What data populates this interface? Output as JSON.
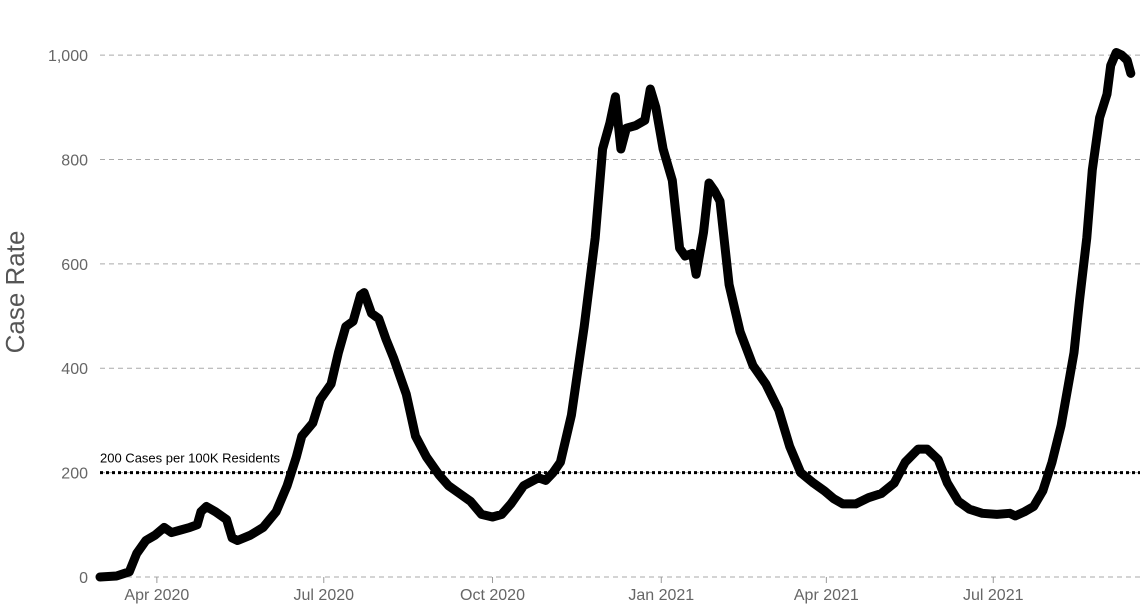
{
  "chart_data": {
    "type": "line",
    "ylabel": "Case Rate",
    "xlabel": "",
    "ylim": [
      0,
      1050
    ],
    "xlim": [
      "2020-03-01",
      "2021-08-31"
    ],
    "grid": {
      "horizontal": true,
      "style": "dashed",
      "color": "#aaaaaa"
    },
    "y_ticks": [
      {
        "value": 0,
        "label": "0"
      },
      {
        "value": 200,
        "label": "200"
      },
      {
        "value": 400,
        "label": "400"
      },
      {
        "value": 600,
        "label": "600"
      },
      {
        "value": 800,
        "label": "800"
      },
      {
        "value": 1000,
        "label": "1,000"
      }
    ],
    "x_ticks": [
      {
        "date": "2020-04-01",
        "label": "Apr 2020"
      },
      {
        "date": "2020-07-01",
        "label": "Jul 2020"
      },
      {
        "date": "2020-10-01",
        "label": "Oct 2020"
      },
      {
        "date": "2021-01-01",
        "label": "Jan 2021"
      },
      {
        "date": "2021-04-01",
        "label": "Apr 2021"
      },
      {
        "date": "2021-07-01",
        "label": "Jul 2021"
      }
    ],
    "reference_line": {
      "value": 200,
      "label": "200 Cases per 100K Residents",
      "style": "dotted"
    },
    "series": [
      {
        "color": "#000000",
        "points": [
          [
            "2020-03-01",
            0
          ],
          [
            "2020-03-10",
            2
          ],
          [
            "2020-03-17",
            10
          ],
          [
            "2020-03-21",
            45
          ],
          [
            "2020-03-26",
            70
          ],
          [
            "2020-03-31",
            80
          ],
          [
            "2020-04-05",
            95
          ],
          [
            "2020-04-09",
            85
          ],
          [
            "2020-04-14",
            90
          ],
          [
            "2020-04-19",
            95
          ],
          [
            "2020-04-23",
            100
          ],
          [
            "2020-04-25",
            125
          ],
          [
            "2020-04-28",
            135
          ],
          [
            "2020-05-03",
            125
          ],
          [
            "2020-05-09",
            110
          ],
          [
            "2020-05-12",
            75
          ],
          [
            "2020-05-15",
            70
          ],
          [
            "2020-05-22",
            80
          ],
          [
            "2020-05-29",
            95
          ],
          [
            "2020-06-05",
            125
          ],
          [
            "2020-06-11",
            175
          ],
          [
            "2020-06-16",
            230
          ],
          [
            "2020-06-19",
            270
          ],
          [
            "2020-06-25",
            295
          ],
          [
            "2020-06-29",
            340
          ],
          [
            "2020-07-05",
            370
          ],
          [
            "2020-07-09",
            430
          ],
          [
            "2020-07-13",
            480
          ],
          [
            "2020-07-17",
            490
          ],
          [
            "2020-07-21",
            540
          ],
          [
            "2020-07-23",
            545
          ],
          [
            "2020-07-27",
            505
          ],
          [
            "2020-07-31",
            495
          ],
          [
            "2020-08-04",
            455
          ],
          [
            "2020-08-08",
            420
          ],
          [
            "2020-08-15",
            350
          ],
          [
            "2020-08-20",
            270
          ],
          [
            "2020-08-26",
            230
          ],
          [
            "2020-09-02",
            195
          ],
          [
            "2020-09-07",
            175
          ],
          [
            "2020-09-13",
            160
          ],
          [
            "2020-09-19",
            145
          ],
          [
            "2020-09-25",
            120
          ],
          [
            "2020-10-01",
            115
          ],
          [
            "2020-10-06",
            120
          ],
          [
            "2020-10-11",
            140
          ],
          [
            "2020-10-18",
            175
          ],
          [
            "2020-10-26",
            190
          ],
          [
            "2020-10-30",
            185
          ],
          [
            "2020-11-03",
            200
          ],
          [
            "2020-11-07",
            220
          ],
          [
            "2020-11-13",
            310
          ],
          [
            "2020-11-20",
            480
          ],
          [
            "2020-11-26",
            650
          ],
          [
            "2020-11-30",
            820
          ],
          [
            "2020-12-04",
            870
          ],
          [
            "2020-12-07",
            920
          ],
          [
            "2020-12-10",
            820
          ],
          [
            "2020-12-13",
            860
          ],
          [
            "2020-12-18",
            865
          ],
          [
            "2020-12-23",
            875
          ],
          [
            "2020-12-26",
            935
          ],
          [
            "2020-12-29",
            900
          ],
          [
            "2021-01-02",
            820
          ],
          [
            "2021-01-07",
            760
          ],
          [
            "2021-01-11",
            630
          ],
          [
            "2021-01-14",
            615
          ],
          [
            "2021-01-18",
            620
          ],
          [
            "2021-01-20",
            580
          ],
          [
            "2021-01-24",
            660
          ],
          [
            "2021-01-27",
            755
          ],
          [
            "2021-01-30",
            740
          ],
          [
            "2021-02-02",
            720
          ],
          [
            "2021-02-07",
            560
          ],
          [
            "2021-02-13",
            470
          ],
          [
            "2021-02-20",
            405
          ],
          [
            "2021-02-27",
            370
          ],
          [
            "2021-03-06",
            320
          ],
          [
            "2021-03-12",
            250
          ],
          [
            "2021-03-18",
            200
          ],
          [
            "2021-03-25",
            180
          ],
          [
            "2021-03-31",
            165
          ],
          [
            "2021-04-05",
            150
          ],
          [
            "2021-04-10",
            140
          ],
          [
            "2021-04-17",
            140
          ],
          [
            "2021-04-24",
            152
          ],
          [
            "2021-05-01",
            160
          ],
          [
            "2021-05-08",
            180
          ],
          [
            "2021-05-14",
            220
          ],
          [
            "2021-05-21",
            245
          ],
          [
            "2021-05-26",
            245
          ],
          [
            "2021-06-01",
            225
          ],
          [
            "2021-06-06",
            180
          ],
          [
            "2021-06-12",
            145
          ],
          [
            "2021-06-18",
            130
          ],
          [
            "2021-06-25",
            122
          ],
          [
            "2021-07-03",
            120
          ],
          [
            "2021-07-10",
            122
          ],
          [
            "2021-07-13",
            117
          ],
          [
            "2021-07-18",
            125
          ],
          [
            "2021-07-23",
            135
          ],
          [
            "2021-07-28",
            165
          ],
          [
            "2021-08-02",
            220
          ],
          [
            "2021-08-07",
            290
          ],
          [
            "2021-08-11",
            370
          ],
          [
            "2021-08-14",
            430
          ],
          [
            "2021-08-17",
            530
          ],
          [
            "2021-08-21",
            650
          ],
          [
            "2021-08-24",
            780
          ],
          [
            "2021-08-28",
            880
          ],
          [
            "2021-09-01",
            925
          ],
          [
            "2021-09-03",
            980
          ],
          [
            "2021-09-06",
            1005
          ],
          [
            "2021-09-09",
            1000
          ],
          [
            "2021-09-12",
            990
          ],
          [
            "2021-09-14",
            965
          ]
        ]
      }
    ]
  }
}
